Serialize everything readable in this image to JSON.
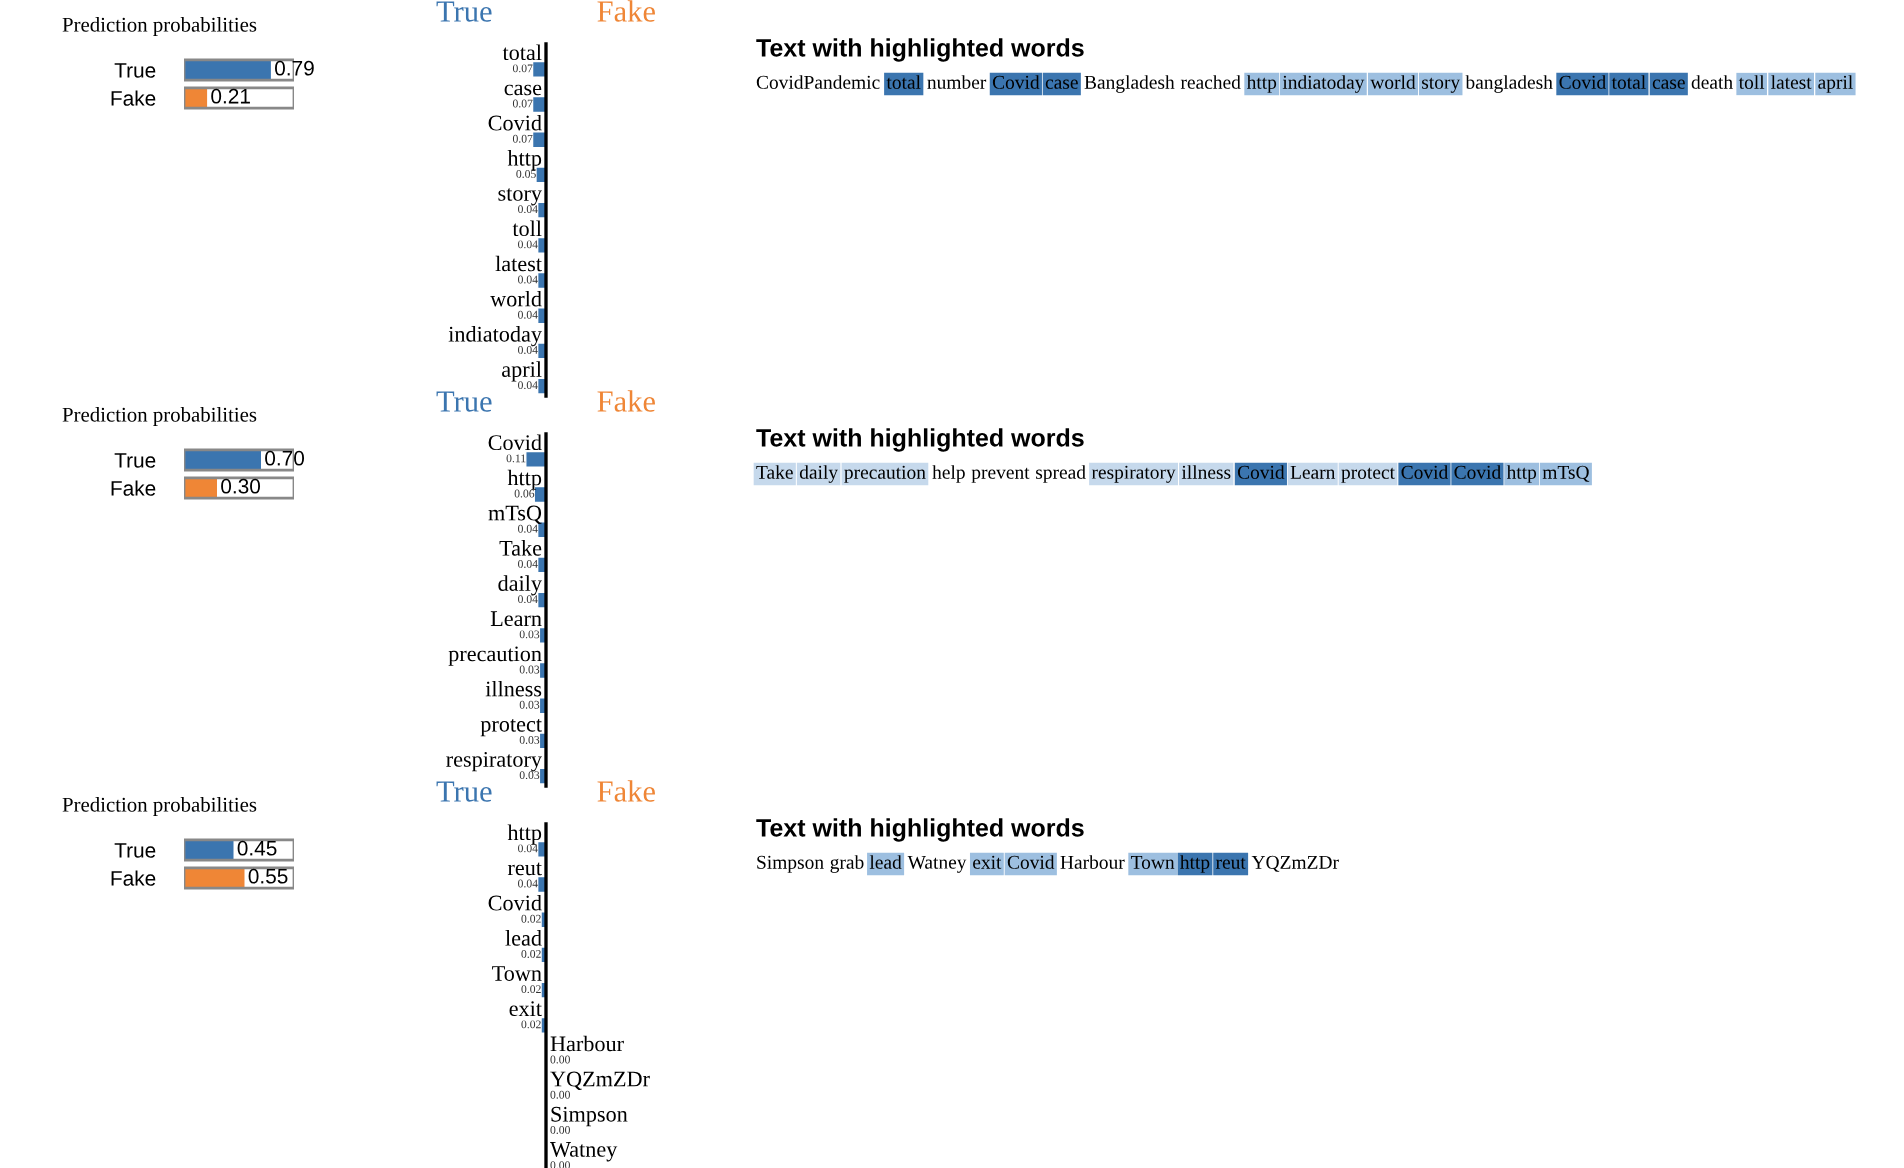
{
  "chart_data": [
    {
      "type": "bar",
      "orientation": "horizontal",
      "title": "Prediction probabilities",
      "categories": [
        "True",
        "Fake"
      ],
      "values": [
        0.79,
        0.21
      ],
      "colors": [
        "#3b75af",
        "#ef8636"
      ],
      "value_labels": [
        "0.79",
        "0.21"
      ],
      "tick_labels": "y"
    },
    {
      "type": "bar",
      "orientation": "horizontal",
      "categories": [
        "total",
        "case",
        "Covid",
        "http",
        "story",
        "toll",
        "latest",
        "world",
        "indiatoday",
        "april"
      ],
      "series": [
        {
          "name": "True",
          "color": "#3b75af",
          "values": [
            0.07,
            0.07,
            0.07,
            0.05,
            0.04,
            0.04,
            0.04,
            0.04,
            0.04,
            0.04
          ],
          "value_labels": [
            "0.07",
            "0.07",
            "0.07",
            "0.05",
            "0.04",
            "0.04",
            "0.04",
            "0.04",
            "0.04",
            "0.04"
          ]
        },
        {
          "name": "Fake",
          "color": "#ef8636",
          "values": [
            null,
            null,
            null,
            null,
            null,
            null,
            null,
            null,
            null,
            null
          ],
          "value_labels": [
            null,
            null,
            null,
            null,
            null,
            null,
            null,
            null,
            null,
            null
          ]
        }
      ],
      "tick_labels": false
    },
    {
      "type": "other",
      "title": "Text with highlighted words",
      "categories": [
        "CovidPandemic",
        "total",
        "number",
        "Covid",
        "case",
        "Bangladesh",
        "reached",
        "http",
        "indiatoday",
        "world",
        "story",
        "bangladesh",
        "Covid",
        "total",
        "case",
        "death",
        "toll",
        "latest",
        "april"
      ],
      "colors": [
        null,
        "#3b75af",
        null,
        "#3b75af",
        "#3b75af",
        null,
        null,
        "#9dbfe0",
        "#9dbfe0",
        "#9dbfe0",
        "#9dbfe0",
        null,
        "#3b75af",
        "#3b75af",
        "#3b75af",
        null,
        "#9dbfe0",
        "#9dbfe0",
        "#9dbfe0"
      ]
    },
    {
      "type": "bar",
      "orientation": "horizontal",
      "title": "Prediction probabilities",
      "categories": [
        "True",
        "Fake"
      ],
      "values": [
        0.7,
        0.3
      ],
      "colors": [
        "#3b75af",
        "#ef8636"
      ],
      "value_labels": [
        "0.70",
        "0.30"
      ],
      "tick_labels": "y"
    },
    {
      "type": "bar",
      "orientation": "horizontal",
      "categories": [
        "Covid",
        "http",
        "mTsQ",
        "Take",
        "daily",
        "Learn",
        "precaution",
        "illness",
        "protect",
        "respiratory"
      ],
      "series": [
        {
          "name": "True",
          "color": "#3b75af",
          "values": [
            0.11,
            0.06,
            0.04,
            0.04,
            0.04,
            0.03,
            0.03,
            0.03,
            0.03,
            0.03
          ],
          "value_labels": [
            "0.11",
            "0.06",
            "0.04",
            "0.04",
            "0.04",
            "0.03",
            "0.03",
            "0.03",
            "0.03",
            "0.03"
          ]
        },
        {
          "name": "Fake",
          "color": "#ef8636",
          "values": [
            null,
            null,
            null,
            null,
            null,
            null,
            null,
            null,
            null,
            null
          ],
          "value_labels": [
            null,
            null,
            null,
            null,
            null,
            null,
            null,
            null,
            null,
            null
          ]
        }
      ],
      "tick_labels": false
    },
    {
      "type": "other",
      "title": "Text with highlighted words",
      "categories": [
        "Take",
        "daily",
        "precaution",
        "help",
        "prevent",
        "spread",
        "respiratory",
        "illness",
        "Covid",
        "Learn",
        "protect",
        "Covid",
        "Covid",
        "http",
        "mTsQ"
      ],
      "colors": [
        "#c6d9ec",
        "#c6d9ec",
        "#c6d9ec",
        null,
        null,
        null,
        "#c6d9ec",
        "#c6d9ec",
        "#3b75af",
        "#c6d9ec",
        "#c6d9ec",
        "#3b75af",
        "#3b75af",
        "#9dbfe0",
        "#9dbfe0"
      ]
    },
    {
      "type": "bar",
      "orientation": "horizontal",
      "title": "Prediction probabilities",
      "categories": [
        "True",
        "Fake"
      ],
      "values": [
        0.45,
        0.55
      ],
      "colors": [
        "#3b75af",
        "#ef8636"
      ],
      "value_labels": [
        "0.45",
        "0.55"
      ],
      "tick_labels": "y"
    },
    {
      "type": "bar",
      "orientation": "horizontal",
      "categories": [
        "http",
        "reut",
        "Covid",
        "lead",
        "Town",
        "exit",
        "Harbour",
        "YQZmZDr",
        "Simpson",
        "Watney"
      ],
      "series": [
        {
          "name": "True",
          "color": "#3b75af",
          "values": [
            0.04,
            0.04,
            0.02,
            0.02,
            0.02,
            0.02,
            null,
            null,
            null,
            null
          ],
          "value_labels": [
            "0.04",
            "0.04",
            "0.02",
            "0.02",
            "0.02",
            "0.02",
            null,
            null,
            null,
            null
          ]
        },
        {
          "name": "Fake",
          "color": "#ef8636",
          "values": [
            null,
            null,
            null,
            null,
            null,
            null,
            0.0,
            0.0,
            0.0,
            0.0
          ],
          "value_labels": [
            null,
            null,
            null,
            null,
            null,
            null,
            "0.00",
            "0.00",
            "0.00",
            "0.00"
          ]
        }
      ],
      "tick_labels": false
    },
    {
      "type": "other",
      "title": "Text with highlighted words",
      "categories": [
        "Simpson",
        "grab",
        "lead",
        "Watney",
        "exit",
        "Covid",
        "Harbour",
        "Town",
        "http",
        "reut",
        "YQZmZDr"
      ],
      "colors": [
        null,
        null,
        "#9dbfe0",
        null,
        "#9dbfe0",
        "#9dbfe0",
        null,
        "#9dbfe0",
        "#3b75af",
        "#3b75af",
        null
      ]
    }
  ]
}
